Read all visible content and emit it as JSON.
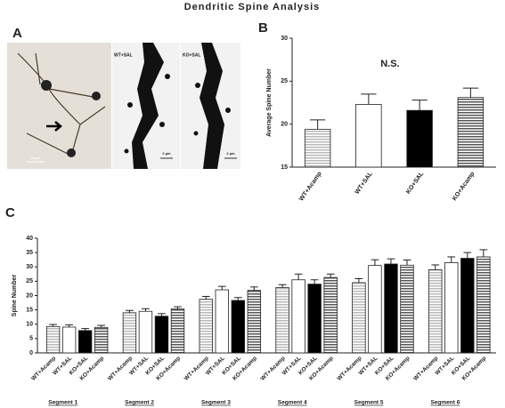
{
  "title": "Dendritic Spine Analysis",
  "panel_labels": [
    "A",
    "B",
    "C"
  ],
  "panel_a": {
    "image_labels": [
      "WT+SAL",
      "KO+SAL"
    ],
    "scale_bars": [
      "20 µm",
      "2 µm",
      "2 µm"
    ]
  },
  "chart_data": [
    {
      "type": "bar",
      "ylabel": "Average Spine Number",
      "annotation": "N.S.",
      "categories": [
        "WT+Acamp",
        "WT+SAL",
        "KO+SAL",
        "KO+Acamp"
      ],
      "values": [
        19.4,
        22.3,
        21.6,
        23.1
      ],
      "errors": [
        1.1,
        1.2,
        1.2,
        1.1
      ],
      "colors": [
        "#b8b8b8",
        "#ffffff",
        "#000000",
        "#555555"
      ],
      "striped": [
        true,
        false,
        false,
        true
      ],
      "ylim": [
        15,
        30
      ],
      "yticks": [
        15,
        20,
        25,
        30
      ]
    },
    {
      "type": "grouped_bar",
      "ylabel": "Spine Number",
      "categories": [
        "Segment 1",
        "Segment 2",
        "Segment 3",
        "Segment 4",
        "Segment 5",
        "Segment 6"
      ],
      "series": [
        {
          "name": "WT+Acamp",
          "color": "#b8b8b8",
          "striped": true,
          "values": [
            9.2,
            14.0,
            18.7,
            22.8,
            24.5,
            29.0
          ],
          "errors": [
            0.7,
            0.8,
            1.0,
            1.0,
            1.4,
            1.7
          ]
        },
        {
          "name": "WT+SAL",
          "color": "#ffffff",
          "striped": false,
          "values": [
            9.0,
            14.5,
            22.0,
            25.5,
            30.5,
            31.5
          ],
          "errors": [
            0.8,
            0.9,
            1.2,
            2.0,
            2.0,
            2.0
          ]
        },
        {
          "name": "KO+SAL",
          "color": "#000000",
          "striped": false,
          "values": [
            7.8,
            12.8,
            18.3,
            24.0,
            31.0,
            33.0
          ],
          "errors": [
            0.7,
            0.9,
            1.0,
            1.5,
            1.8,
            2.0
          ]
        },
        {
          "name": "KO+Acamp",
          "color": "#555555",
          "striped": true,
          "values": [
            8.9,
            15.3,
            21.8,
            26.3,
            30.6,
            33.5
          ],
          "errors": [
            0.7,
            0.8,
            1.2,
            1.2,
            1.8,
            2.5
          ]
        }
      ],
      "ylim": [
        0,
        40
      ],
      "yticks": [
        0,
        5,
        10,
        15,
        20,
        25,
        30,
        35,
        40
      ]
    }
  ]
}
